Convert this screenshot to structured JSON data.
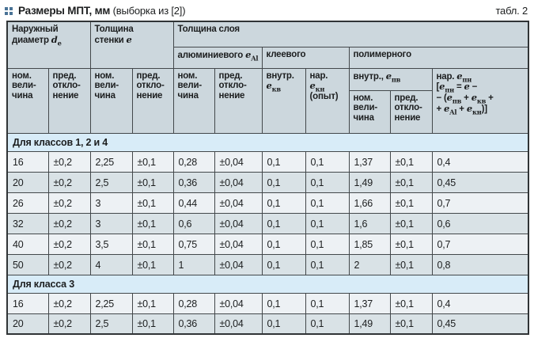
{
  "caption": {
    "title_bold": "Размеры МПТ, мм",
    "title_normal": " (выборка из [2])",
    "table_ref": "табл. 2"
  },
  "colors": {
    "accent_blue": "#4a7396",
    "header_bg": "#ccd7dd",
    "section_bg": "#d8ecf8",
    "row_light": "#edf1f4",
    "row_shaded": "#d9e2e6",
    "border": "#43484b"
  },
  "table": {
    "header": {
      "col_outer_diameter": "Наружный\nдиаметр *d*_{e}",
      "col_wall_thickness": "Толщина\nстенки *e*",
      "col_layer_thickness": "Толщина слоя",
      "col_aluminum": "алюминиевого *e*_{Al}",
      "col_adhesive": "клеевого",
      "col_polymer": "полимерного",
      "nominal": "ном.\nвели-\nчина",
      "deviation": "пред.\nоткло-\nнение",
      "adhesive_inner": "внутр.\n*e*_{кв}",
      "adhesive_outer": "нар.\n*e*_{кн}\n(опыт)",
      "polymer_inner": "внутр., *e*_{пв}",
      "polymer_outer": "нар. *e*_{пн}\n[*e*_{пн} = *e* −\n− (*e*_{пв} + *e*_{кв} +\n+ *e*_{Al} + *e*_{кн})]"
    },
    "sections": [
      {
        "label": "Для классов 1, 2 и 4",
        "rows": [
          [
            "16",
            "±0,2",
            "2,25",
            "±0,1",
            "0,28",
            "±0,04",
            "0,1",
            "0,1",
            "1,37",
            "±0,1",
            "0,4"
          ],
          [
            "20",
            "±0,2",
            "2,5",
            "±0,1",
            "0,36",
            "±0,04",
            "0,1",
            "0,1",
            "1,49",
            "±0,1",
            "0,45"
          ],
          [
            "26",
            "±0,2",
            "3",
            "±0,1",
            "0,44",
            "±0,04",
            "0,1",
            "0,1",
            "1,66",
            "±0,1",
            "0,7"
          ],
          [
            "32",
            "±0,2",
            "3",
            "±0,1",
            "0,6",
            "±0,04",
            "0,1",
            "0,1",
            "1,6",
            "±0,1",
            "0,6"
          ],
          [
            "40",
            "±0,2",
            "3,5",
            "±0,1",
            "0,75",
            "±0,04",
            "0,1",
            "0,1",
            "1,85",
            "±0,1",
            "0,7"
          ],
          [
            "50",
            "±0,2",
            "4",
            "±0,1",
            "1",
            "±0,04",
            "0,1",
            "0,1",
            "2",
            "±0,1",
            "0,8"
          ]
        ]
      },
      {
        "label": "Для класса 3",
        "rows": [
          [
            "16",
            "±0,2",
            "2,25",
            "±0,1",
            "0,28",
            "±0,04",
            "0,1",
            "0,1",
            "1,37",
            "±0,1",
            "0,4"
          ],
          [
            "20",
            "±0,2",
            "2,5",
            "±0,1",
            "0,36",
            "±0,04",
            "0,1",
            "0,1",
            "1,49",
            "±0,1",
            "0,45"
          ]
        ]
      }
    ]
  }
}
